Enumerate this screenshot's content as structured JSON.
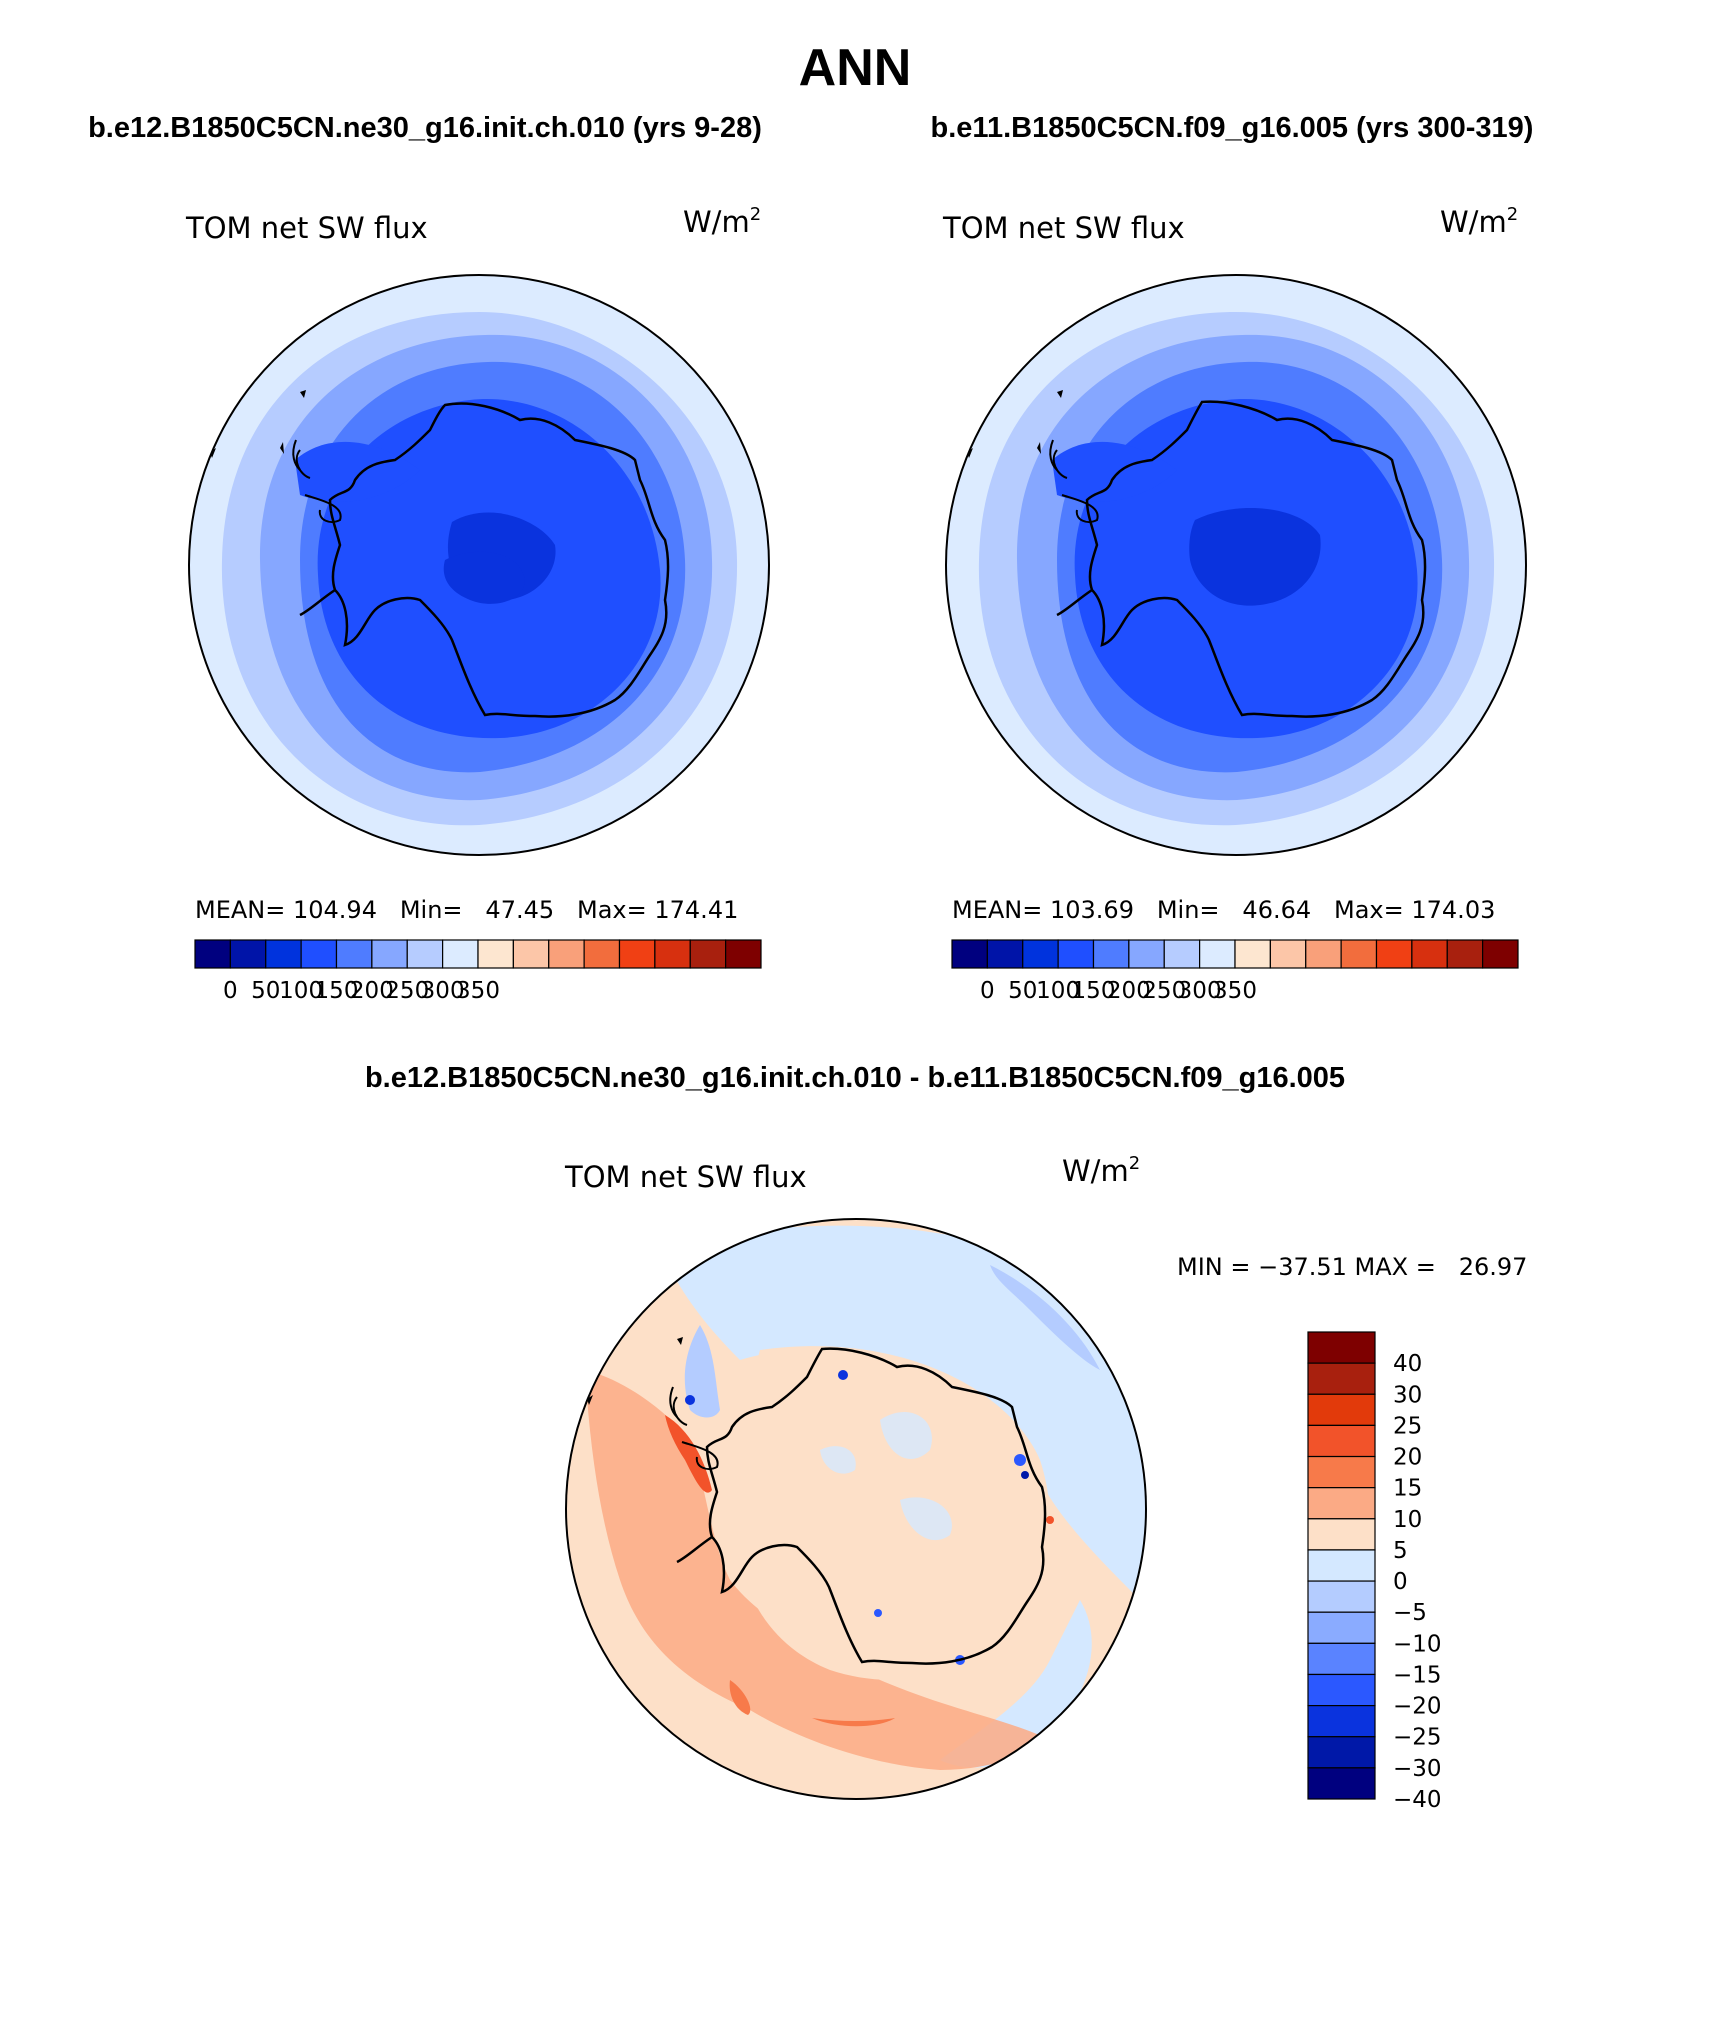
{
  "page": {
    "title": "ANN",
    "panel_titles": [
      "b.e12.B1850C5CN.ne30_g16.init.ch.010 (yrs 9-28)",
      "b.e11.B1850C5CN.f09_g16.005 (yrs 300-319)"
    ],
    "diff_title": "b.e12.B1850C5CN.ne30_g16.init.ch.010 - b.e11.B1850C5CN.f09_g16.005"
  },
  "panels": [
    {
      "variable": "TOM net SW flux",
      "units_base": "W/m",
      "units_exp": "2",
      "stats": "MEAN= 104.94   Min=   47.45   Max= 174.41"
    },
    {
      "variable": "TOM net SW flux",
      "units_base": "W/m",
      "units_exp": "2",
      "stats": "MEAN= 103.69   Min=   46.64   Max= 174.03"
    },
    {
      "variable": "TOM net SW flux",
      "units_base": "W/m",
      "units_exp": "2",
      "stats": "MIN = −37.51 MAX =   26.97"
    }
  ],
  "colorbars": {
    "main": {
      "labels": [
        "0",
        "50",
        "100",
        "150",
        "200",
        "250",
        "300",
        "350"
      ],
      "colors": [
        "#00007f",
        "#0014a8",
        "#0033dd",
        "#1f4fff",
        "#4f7cff",
        "#86a7ff",
        "#b6ccff",
        "#dcebff",
        "#fde6d0",
        "#fcc6a8",
        "#f9a07a",
        "#f26d3d",
        "#f04014",
        "#d7300f",
        "#a8200e",
        "#7e0000"
      ]
    },
    "diff": {
      "labels": [
        "40",
        "30",
        "25",
        "20",
        "15",
        "10",
        "5",
        "0",
        "−5",
        "−10",
        "−15",
        "−20",
        "−25",
        "−30",
        "−40"
      ],
      "colors": [
        "#7e0000",
        "#a8200e",
        "#e23a0b",
        "#f2532a",
        "#f77a4a",
        "#fbaa85",
        "#fde0c8",
        "#d4e8ff",
        "#b4ccff",
        "#8aabff",
        "#5a83ff",
        "#2b58ff",
        "#0a33de",
        "#0018a8",
        "#00007f"
      ]
    }
  }
}
